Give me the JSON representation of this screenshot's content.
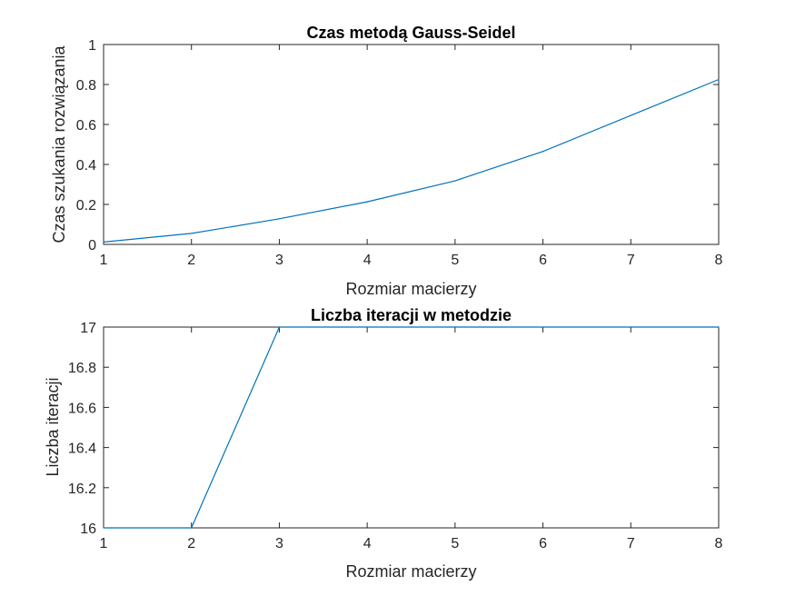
{
  "figure": {
    "background": "#ffffff"
  },
  "chart_data": [
    {
      "type": "line",
      "title": "Czas metodą Gauss-Seidel",
      "xlabel": "Rozmiar macierzy",
      "ylabel": "Czas szukania rozwiązania",
      "xlim": [
        1,
        8
      ],
      "ylim": [
        0,
        1
      ],
      "xticks": [
        "1",
        "2",
        "3",
        "4",
        "5",
        "6",
        "7",
        "8"
      ],
      "yticks": [
        "0",
        "0.2",
        "0.4",
        "0.6",
        "0.8",
        "1"
      ],
      "grid": false,
      "series": [
        {
          "color": "#0072BD",
          "x": [
            1,
            2,
            3,
            4,
            5,
            6,
            7,
            8
          ],
          "y": [
            0.012,
            0.055,
            0.128,
            0.213,
            0.318,
            0.465,
            0.645,
            0.825
          ]
        }
      ]
    },
    {
      "type": "line",
      "title": "Liczba iteracji w metodzie",
      "xlabel": "Rozmiar macierzy",
      "ylabel": "Liczba iteracji",
      "xlim": [
        1,
        8
      ],
      "ylim": [
        16,
        17
      ],
      "xticks": [
        "1",
        "2",
        "3",
        "4",
        "5",
        "6",
        "7",
        "8"
      ],
      "yticks": [
        "16",
        "16.2",
        "16.4",
        "16.6",
        "16.8",
        "17"
      ],
      "grid": false,
      "series": [
        {
          "color": "#0072BD",
          "x": [
            1,
            2,
            3,
            4,
            5,
            6,
            7,
            8
          ],
          "y": [
            16,
            16,
            17,
            17,
            17,
            17,
            17,
            17
          ]
        }
      ]
    }
  ]
}
